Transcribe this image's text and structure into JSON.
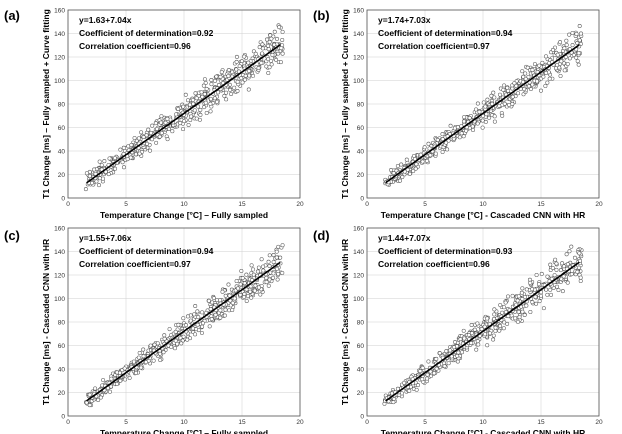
{
  "chart_data": [
    {
      "type": "scatter",
      "panel_label": "(a)",
      "xlabel": "Temperature Change [°C] – Fully sampled",
      "ylabel": "T1 Change [ms] – Fully sampled + Curve fitting",
      "xlim": [
        0,
        20
      ],
      "ylim": [
        0,
        160
      ],
      "xticks": [
        0,
        5,
        10,
        15,
        20
      ],
      "yticks": [
        0,
        20,
        40,
        60,
        80,
        100,
        120,
        140,
        160
      ],
      "grid": true,
      "fit": {
        "intercept": 1.63,
        "slope": 7.04,
        "x_range": [
          1.6,
          18.3
        ]
      },
      "annotations": [
        "y=1.63+7.04x",
        "Coefficient of determination=0.92",
        "Correlation coefficient=0.96"
      ],
      "scatter": {
        "x_range": [
          1.5,
          18.5
        ],
        "spread": 11,
        "count": 600,
        "seed": 11
      }
    },
    {
      "type": "scatter",
      "panel_label": "(b)",
      "xlabel": "Temperature Change [°C] - Cascaded CNN with HR",
      "ylabel": "T1 Change [ms] – Fully sampled + Curve fitting",
      "xlim": [
        0,
        20
      ],
      "ylim": [
        0,
        160
      ],
      "xticks": [
        0,
        5,
        10,
        15,
        20
      ],
      "yticks": [
        0,
        20,
        40,
        60,
        80,
        100,
        120,
        140,
        160
      ],
      "grid": true,
      "fit": {
        "intercept": 1.74,
        "slope": 7.03,
        "x_range": [
          1.6,
          18.3
        ]
      },
      "annotations": [
        "y=1.74+7.03x",
        "Coefficient of determination=0.94",
        "Correlation coefficient=0.97"
      ],
      "scatter": {
        "x_range": [
          1.5,
          18.5
        ],
        "spread": 9.5,
        "count": 600,
        "seed": 23
      }
    },
    {
      "type": "scatter",
      "panel_label": "(c)",
      "xlabel": "Temperature Change [°C] – Fully sampled",
      "ylabel": "T1 Change [ms] - Cascaded CNN with HR",
      "xlim": [
        0,
        20
      ],
      "ylim": [
        0,
        160
      ],
      "xticks": [
        0,
        5,
        10,
        15,
        20
      ],
      "yticks": [
        0,
        20,
        40,
        60,
        80,
        100,
        120,
        140,
        160
      ],
      "grid": true,
      "fit": {
        "intercept": 1.55,
        "slope": 7.06,
        "x_range": [
          1.6,
          18.3
        ]
      },
      "annotations": [
        "y=1.55+7.06x",
        "Coefficient of determination=0.94",
        "Correlation coefficient=0.97"
      ],
      "scatter": {
        "x_range": [
          1.5,
          18.5
        ],
        "spread": 9.5,
        "count": 600,
        "seed": 37
      }
    },
    {
      "type": "scatter",
      "panel_label": "(d)",
      "xlabel": "Temperature Change [°C] - Cascaded CNN with HR",
      "ylabel": "T1 Change [ms] - Cascaded CNN with HR",
      "xlim": [
        0,
        20
      ],
      "ylim": [
        0,
        160
      ],
      "xticks": [
        0,
        5,
        10,
        15,
        20
      ],
      "yticks": [
        0,
        20,
        40,
        60,
        80,
        100,
        120,
        140,
        160
      ],
      "grid": true,
      "fit": {
        "intercept": 1.44,
        "slope": 7.07,
        "x_range": [
          1.6,
          18.3
        ]
      },
      "annotations": [
        "y=1.44+7.07x",
        "Coefficient of determination=0.93",
        "Correlation coefficient=0.96"
      ],
      "scatter": {
        "x_range": [
          1.5,
          18.5
        ],
        "spread": 10,
        "count": 600,
        "seed": 51
      }
    }
  ]
}
